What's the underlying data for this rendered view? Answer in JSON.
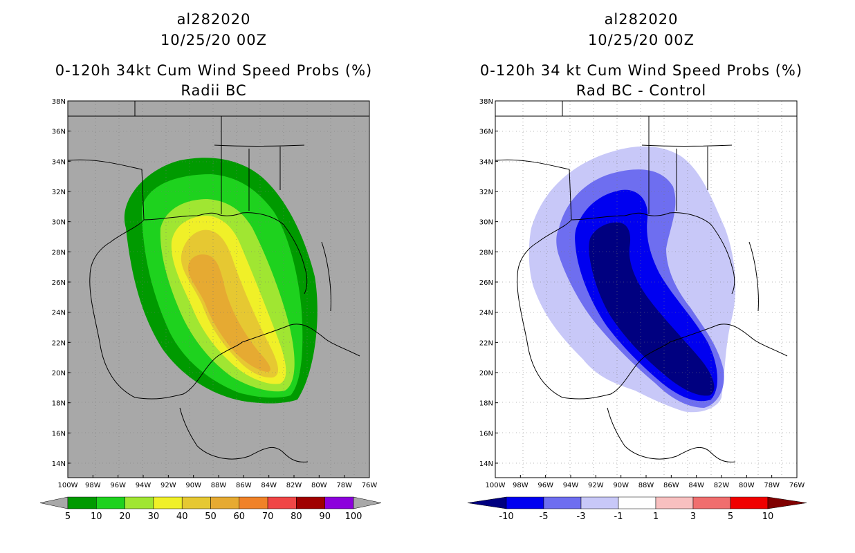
{
  "left_panel": {
    "title_storm": "al282020",
    "title_time": "10/25/20 00Z",
    "title_product": "0-120h 34kt Cum Wind Speed Probs (%)",
    "title_sub": "Radii BC",
    "background_color": "#a8a8a8",
    "colorbar": {
      "labels": [
        "5",
        "10",
        "20",
        "30",
        "40",
        "50",
        "60",
        "70",
        "80",
        "90",
        "100"
      ],
      "colors": [
        "#009a00",
        "#1ed21e",
        "#a0e632",
        "#f0f028",
        "#e6c832",
        "#e6aa32",
        "#f08228",
        "#f04646",
        "#a00000",
        "#8c00dc"
      ]
    }
  },
  "right_panel": {
    "title_storm": "al282020",
    "title_time": "10/25/20 00Z",
    "title_product": "0-120h 34 kt Cum Wind Speed Probs (%)",
    "title_sub": "Rad BC - Control",
    "background_color": "#ffffff",
    "colorbar": {
      "labels": [
        "-10",
        "-5",
        "-3",
        "-1",
        "1",
        "3",
        "5",
        "10"
      ],
      "colors": [
        "#000080",
        "#0000f0",
        "#6e6ef0",
        "#c8c8f8",
        "#ffffff",
        "#f8c0c0",
        "#f06e6e",
        "#f00000",
        "#800000"
      ]
    }
  },
  "axes": {
    "lat_labels": [
      "38N",
      "36N",
      "34N",
      "32N",
      "30N",
      "28N",
      "26N",
      "24N",
      "22N",
      "20N",
      "18N",
      "16N",
      "14N"
    ],
    "lon_labels": [
      "100W",
      "98W",
      "96W",
      "94W",
      "92W",
      "90W",
      "88W",
      "86W",
      "84W",
      "82W",
      "80W",
      "78W",
      "76W"
    ]
  }
}
